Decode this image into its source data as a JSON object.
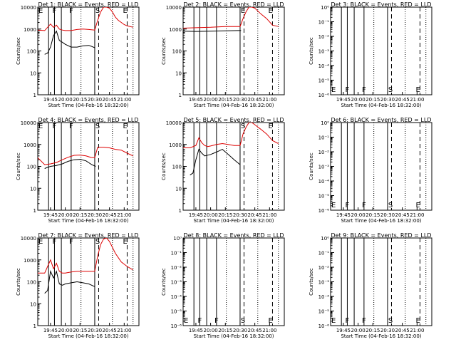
{
  "y_axis_label": "Counts/sec",
  "x_axis_label": "Start Time (04-Feb-16 18:32:00)",
  "y_ticks_log": [
    "1",
    "10",
    "100",
    "1000",
    "10000"
  ],
  "y_ticks_small": [
    "10⁰",
    "10⁻¹",
    "10⁻²",
    "10⁻³",
    "10⁻⁴",
    "10⁻⁵",
    "10⁻⁶"
  ],
  "x_ticks": [
    "19:45",
    "20:00",
    "20:15",
    "20:30",
    "20:45",
    "21:00"
  ],
  "colors": {
    "events": "#000000",
    "lld": "#dd0000",
    "axis": "#000000"
  },
  "chart_data": [
    {
      "type": "line",
      "title": "Det 1: BLACK = Events, RED = LLD",
      "ylog": true,
      "ylim": [
        1,
        10000
      ],
      "xlim": [
        "19:32",
        "21:15"
      ],
      "series": [
        {
          "name": "Events",
          "color": "#000000",
          "x": [
            "19:39",
            "19:42",
            "19:45",
            "19:48",
            "19:51",
            "19:54",
            "19:57",
            "20:00",
            "20:06",
            "20:12",
            "20:18",
            "20:24",
            "20:27",
            "20:30"
          ],
          "values": [
            70,
            80,
            150,
            500,
            800,
            300,
            250,
            200,
            150,
            150,
            170,
            180,
            160,
            140
          ]
        },
        {
          "name": "LLD",
          "color": "#dd0000",
          "x": [
            "19:32",
            "19:39",
            "19:45",
            "19:48",
            "19:51",
            "19:54",
            "19:57",
            "20:00",
            "20:06",
            "20:12",
            "20:18",
            "20:24",
            "20:30",
            "20:33",
            "20:36",
            "20:39",
            "20:42",
            "20:45",
            "20:48",
            "20:51",
            "20:54",
            "20:57",
            "21:00",
            "21:03",
            "21:06",
            "21:09"
          ],
          "values": [
            900,
            850,
            1700,
            1200,
            1500,
            1000,
            900,
            850,
            850,
            950,
            1000,
            950,
            900,
            2500,
            6000,
            10000,
            10000,
            9000,
            6000,
            3500,
            2500,
            2000,
            1600,
            1400,
            1300,
            1200
          ]
        }
      ],
      "markers": [
        {
          "label": "E",
          "x": "19:35"
        },
        {
          "label": "F",
          "x": "19:49"
        },
        {
          "label": "F",
          "x": "20:06"
        },
        {
          "label": "S",
          "x": "20:33"
        },
        {
          "label": "E",
          "x": "21:01"
        }
      ]
    },
    {
      "type": "line",
      "title": "Det 2: BLACK = Events, RED = LLD",
      "ylog": true,
      "ylim": [
        1,
        10000
      ],
      "xlim": [
        "19:32",
        "21:15"
      ],
      "series": [
        {
          "name": "Events",
          "color": "#000000",
          "x": [
            "19:32",
            "19:45",
            "20:00",
            "20:15",
            "20:28",
            "20:31"
          ],
          "values": [
            800,
            780,
            800,
            830,
            850,
            850
          ]
        },
        {
          "name": "LLD",
          "color": "#dd0000",
          "x": [
            "19:32",
            "19:45",
            "20:00",
            "20:15",
            "20:30",
            "20:33",
            "20:36",
            "20:39",
            "20:42",
            "20:45",
            "20:51",
            "20:57",
            "21:03",
            "21:09"
          ],
          "values": [
            1100,
            1150,
            1200,
            1300,
            1300,
            3000,
            6000,
            10000,
            10000,
            9000,
            5000,
            3000,
            1500,
            1300
          ]
        }
      ],
      "markers": [
        {
          "label": "E",
          "x": "20:33"
        },
        {
          "label": "E",
          "x": "21:01"
        }
      ]
    },
    {
      "type": "line",
      "title": "Det 3: BLACK = Events, RED = LLD",
      "ylog": true,
      "ylim": [
        1e-06,
        1
      ],
      "xlim": [
        "19:32",
        "21:15"
      ],
      "series": [],
      "markers": [
        {
          "label": "E",
          "x": "19:35"
        },
        {
          "label": "F",
          "x": "19:49"
        },
        {
          "label": "F",
          "x": "20:06"
        },
        {
          "label": "S",
          "x": "20:33"
        },
        {
          "label": "E",
          "x": "21:01"
        }
      ]
    },
    {
      "type": "line",
      "title": "Det 4: BLACK = Events, RED = LLD",
      "ylog": true,
      "ylim": [
        1,
        10000
      ],
      "xlim": [
        "19:32",
        "21:15"
      ],
      "series": [
        {
          "name": "Events",
          "color": "#000000",
          "x": [
            "19:39",
            "19:42",
            "19:45",
            "19:51",
            "19:57",
            "20:03",
            "20:09",
            "20:15",
            "20:21",
            "20:27",
            "20:31"
          ],
          "values": [
            80,
            90,
            100,
            110,
            130,
            170,
            200,
            210,
            180,
            120,
            100
          ]
        },
        {
          "name": "LLD",
          "color": "#dd0000",
          "x": [
            "19:32",
            "19:39",
            "19:45",
            "19:51",
            "19:57",
            "20:03",
            "20:09",
            "20:15",
            "20:21",
            "20:27",
            "20:30",
            "20:33",
            "20:39",
            "20:45",
            "20:51",
            "20:57",
            "21:03",
            "21:09"
          ],
          "values": [
            250,
            120,
            130,
            150,
            200,
            260,
            320,
            330,
            300,
            250,
            250,
            750,
            750,
            700,
            600,
            550,
            400,
            300
          ]
        }
      ],
      "markers": [
        {
          "label": "E",
          "x": "19:35"
        },
        {
          "label": "F",
          "x": "19:49"
        },
        {
          "label": "F",
          "x": "20:06"
        },
        {
          "label": "S",
          "x": "20:33"
        },
        {
          "label": "E",
          "x": "21:01"
        }
      ]
    },
    {
      "type": "line",
      "title": "Det 5: BLACK = Events, RED = LLD",
      "ylog": true,
      "ylim": [
        1,
        10000
      ],
      "xlim": [
        "19:32",
        "21:15"
      ],
      "series": [
        {
          "name": "Events",
          "color": "#000000",
          "x": [
            "19:39",
            "19:42",
            "19:45",
            "19:48",
            "19:51",
            "19:54",
            "20:00",
            "20:06",
            "20:12",
            "20:18",
            "20:24",
            "20:30"
          ],
          "values": [
            40,
            50,
            200,
            600,
            400,
            300,
            350,
            450,
            600,
            350,
            200,
            120
          ]
        },
        {
          "name": "LLD",
          "color": "#dd0000",
          "x": [
            "19:32",
            "19:39",
            "19:45",
            "19:48",
            "19:51",
            "19:54",
            "19:57",
            "20:00",
            "20:06",
            "20:12",
            "20:18",
            "20:24",
            "20:30",
            "20:33",
            "20:36",
            "20:39",
            "20:42",
            "20:45",
            "20:51",
            "20:57",
            "21:03",
            "21:09"
          ],
          "values": [
            700,
            700,
            900,
            2000,
            1200,
            900,
            800,
            850,
            1000,
            1100,
            1000,
            900,
            900,
            3000,
            6000,
            10000,
            10000,
            8000,
            5000,
            3000,
            1500,
            1100
          ]
        }
      ],
      "markers": [
        {
          "label": "S",
          "x": "20:33"
        },
        {
          "label": "E",
          "x": "21:01"
        }
      ]
    },
    {
      "type": "line",
      "title": "Det 6: BLACK = Events, RED = LLD",
      "ylog": true,
      "ylim": [
        1e-06,
        1
      ],
      "xlim": [
        "19:32",
        "21:15"
      ],
      "series": [],
      "markers": [
        {
          "label": "E",
          "x": "19:35"
        },
        {
          "label": "F",
          "x": "19:49"
        },
        {
          "label": "F",
          "x": "20:06"
        },
        {
          "label": "S",
          "x": "20:33"
        },
        {
          "label": "E",
          "x": "21:01"
        }
      ]
    },
    {
      "type": "line",
      "title": "Det 7: BLACK = Events, RED = LLD",
      "ylog": true,
      "ylim": [
        1,
        10000
      ],
      "xlim": [
        "19:32",
        "21:15"
      ],
      "series": [
        {
          "name": "Events",
          "color": "#000000",
          "x": [
            "19:39",
            "19:42",
            "19:45",
            "19:48",
            "19:51",
            "19:54",
            "19:57",
            "20:00",
            "20:06",
            "20:12",
            "20:18",
            "20:24",
            "20:30"
          ],
          "values": [
            30,
            40,
            300,
            150,
            300,
            80,
            70,
            80,
            90,
            100,
            90,
            80,
            60
          ]
        },
        {
          "name": "LLD",
          "color": "#dd0000",
          "x": [
            "19:32",
            "19:39",
            "19:45",
            "19:48",
            "19:51",
            "19:54",
            "19:57",
            "20:00",
            "20:06",
            "20:12",
            "20:18",
            "20:24",
            "20:30",
            "20:33",
            "20:36",
            "20:39",
            "20:42",
            "20:45",
            "20:51",
            "20:57",
            "21:03",
            "21:09"
          ],
          "values": [
            250,
            250,
            1000,
            400,
            700,
            300,
            250,
            250,
            280,
            300,
            300,
            300,
            300,
            1500,
            5000,
            9000,
            10000,
            7000,
            2000,
            800,
            500,
            350
          ]
        }
      ],
      "markers": [
        {
          "label": "E",
          "x": "19:35"
        },
        {
          "label": "F",
          "x": "19:49"
        },
        {
          "label": "F",
          "x": "20:06"
        },
        {
          "label": "S",
          "x": "20:33"
        },
        {
          "label": "E",
          "x": "21:01"
        }
      ]
    },
    {
      "type": "line",
      "title": "Det 8: BLACK = Events, RED = LLD",
      "ylog": true,
      "ylim": [
        1e-06,
        1
      ],
      "xlim": [
        "19:32",
        "21:15"
      ],
      "series": [],
      "markers": [
        {
          "label": "E",
          "x": "19:35"
        },
        {
          "label": "F",
          "x": "19:49"
        },
        {
          "label": "F",
          "x": "20:06"
        },
        {
          "label": "S",
          "x": "20:33"
        },
        {
          "label": "E",
          "x": "21:01"
        }
      ]
    },
    {
      "type": "line",
      "title": "Det 9: BLACK = Events, RED = LLD",
      "ylog": true,
      "ylim": [
        1e-06,
        1
      ],
      "xlim": [
        "19:32",
        "21:15"
      ],
      "series": [],
      "markers": [
        {
          "label": "E",
          "x": "19:35"
        },
        {
          "label": "F",
          "x": "19:49"
        },
        {
          "label": "F",
          "x": "20:06"
        },
        {
          "label": "S",
          "x": "20:33"
        },
        {
          "label": "E",
          "x": "21:01"
        }
      ]
    }
  ],
  "vertical_lines": {
    "solid": [
      "19:43",
      "19:49",
      "19:56",
      "20:06",
      "20:30"
    ],
    "dashed": [
      "20:34",
      "21:03"
    ],
    "dotted": [
      "20:16",
      "20:48",
      "21:09"
    ]
  }
}
